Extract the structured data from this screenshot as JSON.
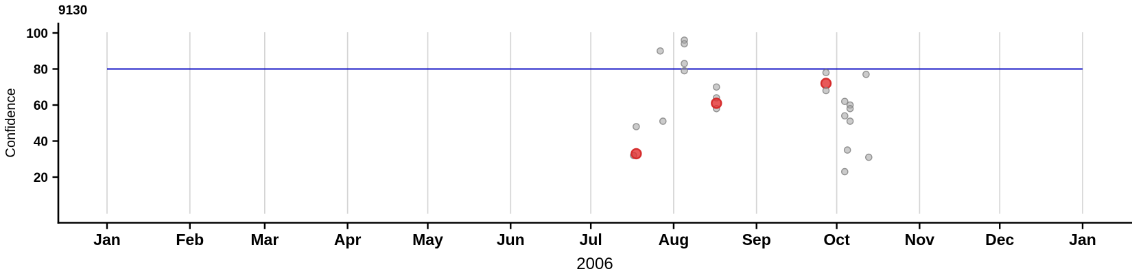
{
  "chart_data": {
    "type": "scatter",
    "title": "9130",
    "ylabel": "Confidence",
    "xlabel_year": "2006",
    "x_axis": {
      "tick_labels": [
        "Jan",
        "Feb",
        "Mar",
        "Apr",
        "May",
        "Jun",
        "Jul",
        "Aug",
        "Sep",
        "Oct",
        "Nov",
        "Dec",
        "Jan"
      ],
      "range_days": 365,
      "grid": true
    },
    "y_axis": {
      "ticks": [
        20,
        40,
        60,
        80,
        100
      ],
      "min": 0,
      "max": 107,
      "grid": false
    },
    "threshold_line": {
      "value": 80,
      "color": "#1111c4"
    },
    "points": [
      {
        "month": 7,
        "day": 18,
        "confidence": 48,
        "highlighted": false
      },
      {
        "month": 7,
        "day": 27,
        "confidence": 90,
        "highlighted": false
      },
      {
        "month": 7,
        "day": 28,
        "confidence": 51,
        "highlighted": false
      },
      {
        "month": 8,
        "day": 5,
        "confidence": 96,
        "highlighted": false
      },
      {
        "month": 8,
        "day": 5,
        "confidence": 94,
        "highlighted": false
      },
      {
        "month": 8,
        "day": 5,
        "confidence": 83,
        "highlighted": false
      },
      {
        "month": 8,
        "day": 5,
        "confidence": 79,
        "highlighted": false
      },
      {
        "month": 8,
        "day": 17,
        "confidence": 70,
        "highlighted": false
      },
      {
        "month": 8,
        "day": 17,
        "confidence": 64,
        "highlighted": false
      },
      {
        "month": 8,
        "day": 17,
        "confidence": 58,
        "highlighted": false
      },
      {
        "month": 9,
        "day": 27,
        "confidence": 78,
        "highlighted": false
      },
      {
        "month": 7,
        "day": 17,
        "confidence": 32,
        "highlighted": false
      },
      {
        "month": 10,
        "day": 4,
        "confidence": 62,
        "highlighted": false
      },
      {
        "month": 10,
        "day": 6,
        "confidence": 60,
        "highlighted": false
      },
      {
        "month": 10,
        "day": 6,
        "confidence": 58,
        "highlighted": false
      },
      {
        "month": 10,
        "day": 4,
        "confidence": 54,
        "highlighted": false
      },
      {
        "month": 10,
        "day": 6,
        "confidence": 51,
        "highlighted": false
      },
      {
        "month": 10,
        "day": 5,
        "confidence": 35,
        "highlighted": false
      },
      {
        "month": 10,
        "day": 13,
        "confidence": 31,
        "highlighted": false
      },
      {
        "month": 10,
        "day": 4,
        "confidence": 23,
        "highlighted": false
      },
      {
        "month": 10,
        "day": 12,
        "confidence": 77,
        "highlighted": false
      },
      {
        "month": 7,
        "day": 18,
        "confidence": 33,
        "highlighted": true
      },
      {
        "month": 8,
        "day": 17,
        "confidence": 61,
        "highlighted": true
      },
      {
        "month": 9,
        "day": 27,
        "confidence": 72,
        "highlighted": true
      },
      {
        "month": 9,
        "day": 27,
        "confidence": 68,
        "highlighted": false
      }
    ],
    "colors": {
      "grid": "#d5d5d5",
      "axis": "#000000",
      "threshold": "#1111c4",
      "gray_point_fill": "rgba(160,160,160,0.55)",
      "gray_point_stroke": "rgba(130,130,130,0.85)",
      "red_point_fill": "rgba(226,48,48,0.8)",
      "red_point_stroke": "rgba(212,40,40,0.95)"
    }
  }
}
